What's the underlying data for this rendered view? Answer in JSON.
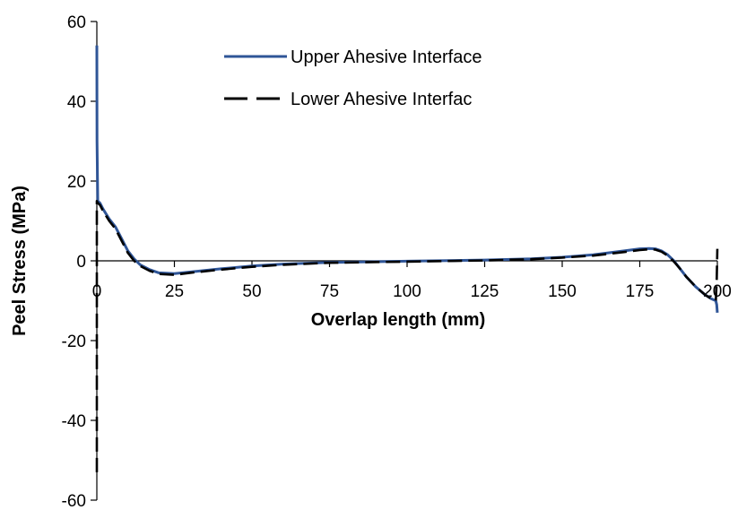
{
  "chart_data": {
    "type": "line",
    "title": "",
    "xlabel": "Overlap length (mm)",
    "ylabel": "Peel Stress (MPa)",
    "xlim": [
      0,
      200
    ],
    "ylim": [
      -60,
      60
    ],
    "x_ticks": [
      "0",
      "25",
      "50",
      "75",
      "100",
      "125",
      "150",
      "175",
      "200"
    ],
    "y_ticks": [
      "60",
      "40",
      "20",
      "0",
      "-20",
      "-40",
      "-60"
    ],
    "grid": false,
    "legend_position": "top-center",
    "series": [
      {
        "name": "Upper Ahesive Interface",
        "color": "#2f5597",
        "style": "solid",
        "x": [
          0,
          0.05,
          0.3,
          1,
          2,
          4,
          6,
          8,
          10,
          12,
          14,
          17,
          20,
          25,
          30,
          40,
          50,
          60,
          75,
          100,
          125,
          140,
          150,
          160,
          170,
          175,
          178,
          180,
          182,
          184,
          186,
          188,
          190,
          193,
          196,
          198,
          199.5,
          199.8,
          200
        ],
        "y": [
          54,
          30,
          15,
          14.5,
          13,
          10.5,
          8.5,
          5.5,
          2.5,
          0.5,
          -1,
          -2.2,
          -3,
          -3.2,
          -2.8,
          -2,
          -1.3,
          -0.8,
          -0.4,
          -0.1,
          0.2,
          0.5,
          0.9,
          1.5,
          2.5,
          3.0,
          3.1,
          3.0,
          2.5,
          1.5,
          0,
          -2,
          -4,
          -6.5,
          -8.5,
          -9.5,
          -10,
          -11,
          -13
        ]
      },
      {
        "name": "Lower Ahesive Interfac",
        "color": "#000000",
        "style": "dashed",
        "x": [
          0,
          0,
          0.3,
          1,
          2,
          4,
          6,
          8,
          10,
          12,
          14,
          17,
          20,
          25,
          30,
          40,
          50,
          60,
          75,
          100,
          125,
          140,
          150,
          160,
          170,
          175,
          178,
          180,
          182,
          184,
          186,
          188,
          190,
          193,
          196,
          198,
          199.5,
          199.8,
          200
        ],
        "y": [
          -53,
          15,
          14.5,
          14,
          12.5,
          10,
          8,
          5,
          2,
          0,
          -1.3,
          -2.5,
          -3.3,
          -3.5,
          -3,
          -2.2,
          -1.5,
          -1,
          -0.5,
          -0.2,
          0.1,
          0.4,
          0.8,
          1.3,
          2.2,
          2.7,
          2.9,
          2.8,
          2.3,
          1.3,
          -0.2,
          -2,
          -4,
          -6.5,
          -8.5,
          -9.5,
          -10,
          -5,
          3
        ]
      }
    ]
  }
}
